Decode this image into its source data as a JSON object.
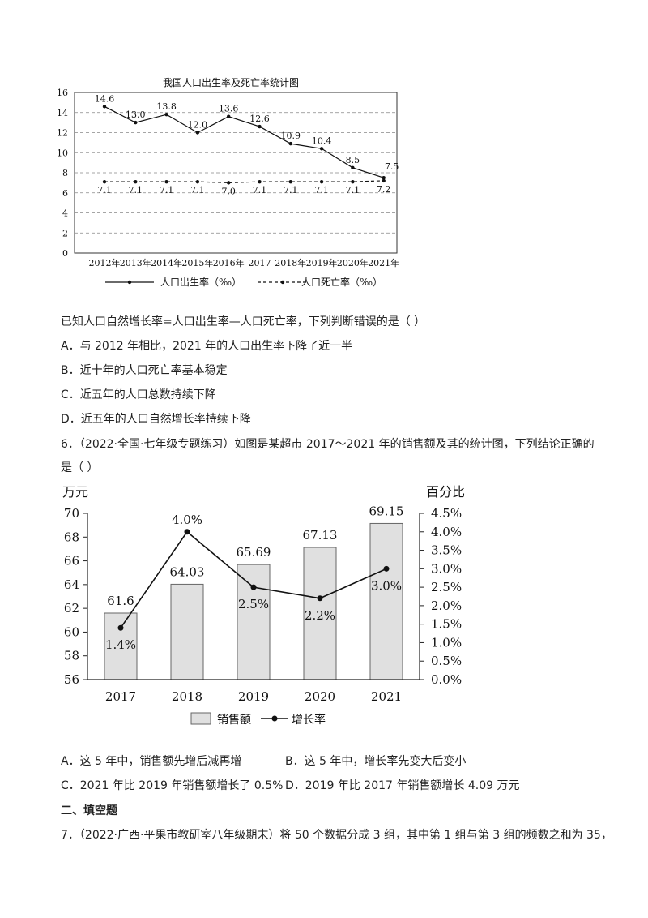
{
  "chart1": {
    "type": "line",
    "title": "我国人口出生率及死亡率统计图",
    "categories": [
      "2012年",
      "2013年",
      "2014年",
      "2015年",
      "2016年",
      "2017",
      "2018年",
      "2019年",
      "2020年",
      "2021年"
    ],
    "series": [
      {
        "name": "人口出生率（‰）",
        "values": [
          14.6,
          13.0,
          13.8,
          12.0,
          13.6,
          12.6,
          10.9,
          10.4,
          8.5,
          7.5
        ],
        "labels": [
          "14.6",
          "13.0",
          "13.8",
          "12.0",
          "13.6",
          "12.6",
          "10.9",
          "10.4",
          "8.5",
          "7.5"
        ]
      },
      {
        "name": "人口死亡率（‰）",
        "values": [
          7.1,
          7.1,
          7.1,
          7.1,
          7.0,
          7.1,
          7.1,
          7.1,
          7.1,
          7.2
        ],
        "labels": [
          "7.1",
          "7.1",
          "7.1",
          "7.1",
          "7.0",
          "7.1",
          "7.1",
          "7.1",
          "7.1",
          "7.2"
        ]
      }
    ],
    "ylim": [
      0,
      16
    ],
    "yticks": [
      0,
      2,
      4,
      6,
      8,
      10,
      12,
      14,
      16
    ],
    "grid": true
  },
  "q5": {
    "stem": "已知人口自然增长率=人口出生率—人口死亡率，下列判断错误的是（    ）",
    "options": [
      "A．与 2012 年相比，2021 年的人口出生率下降了近一半",
      "B．近十年的人口死亡率基本稳定",
      "C．近五年的人口总数持续下降",
      "D．近五年的人口自然增长率持续下降"
    ]
  },
  "q6": {
    "line1": "6．（2022·全国·七年级专题练习）如图是某超市 2017～2021 年的销售额及其的统计图，下列结论正确的",
    "line2": "是（     ）",
    "options": [
      "A．这 5 年中，销售额先增后减再增",
      "B．这 5 年中，增长率先变大后变小",
      "C．2021 年比 2019 年销售额增长了 0.5%",
      "D．2019 年比 2017 年销售额增长 4.09 万元"
    ]
  },
  "chart2": {
    "type": "bar",
    "left_unit": "万元",
    "right_unit": "百分比",
    "categories": [
      "2017",
      "2018",
      "2019",
      "2020",
      "2021"
    ],
    "series": [
      {
        "name": "销售额",
        "type": "bar",
        "values": [
          61.6,
          64.03,
          65.69,
          67.13,
          69.15
        ],
        "labels": [
          "61.6",
          "64.03",
          "65.69",
          "67.13",
          "69.15"
        ]
      },
      {
        "name": "增长率",
        "type": "line",
        "values": [
          1.4,
          4.0,
          2.5,
          2.2,
          3.0
        ],
        "labels": [
          "1.4%",
          "4.0%",
          "2.5%",
          "2.2%",
          "3.0%"
        ]
      }
    ],
    "ylim_left": [
      56,
      70
    ],
    "yticks_left": [
      "56",
      "58",
      "60",
      "62",
      "64",
      "66",
      "68",
      "70"
    ],
    "ylim_right": [
      0,
      4.5
    ],
    "yticks_right": [
      "0.0%",
      "0.5%",
      "1.0%",
      "1.5%",
      "2.0%",
      "2.5%",
      "3.0%",
      "3.5%",
      "4.0%",
      "4.5%"
    ],
    "bar_color": "#e0e0e0"
  },
  "section2": {
    "title": "二、填空题"
  },
  "q7": {
    "text": "7．（2022·广西·平果市教研室八年级期末）将 50 个数据分成 3 组，其中第 1 组与第 3 组的频数之和为 35，"
  }
}
